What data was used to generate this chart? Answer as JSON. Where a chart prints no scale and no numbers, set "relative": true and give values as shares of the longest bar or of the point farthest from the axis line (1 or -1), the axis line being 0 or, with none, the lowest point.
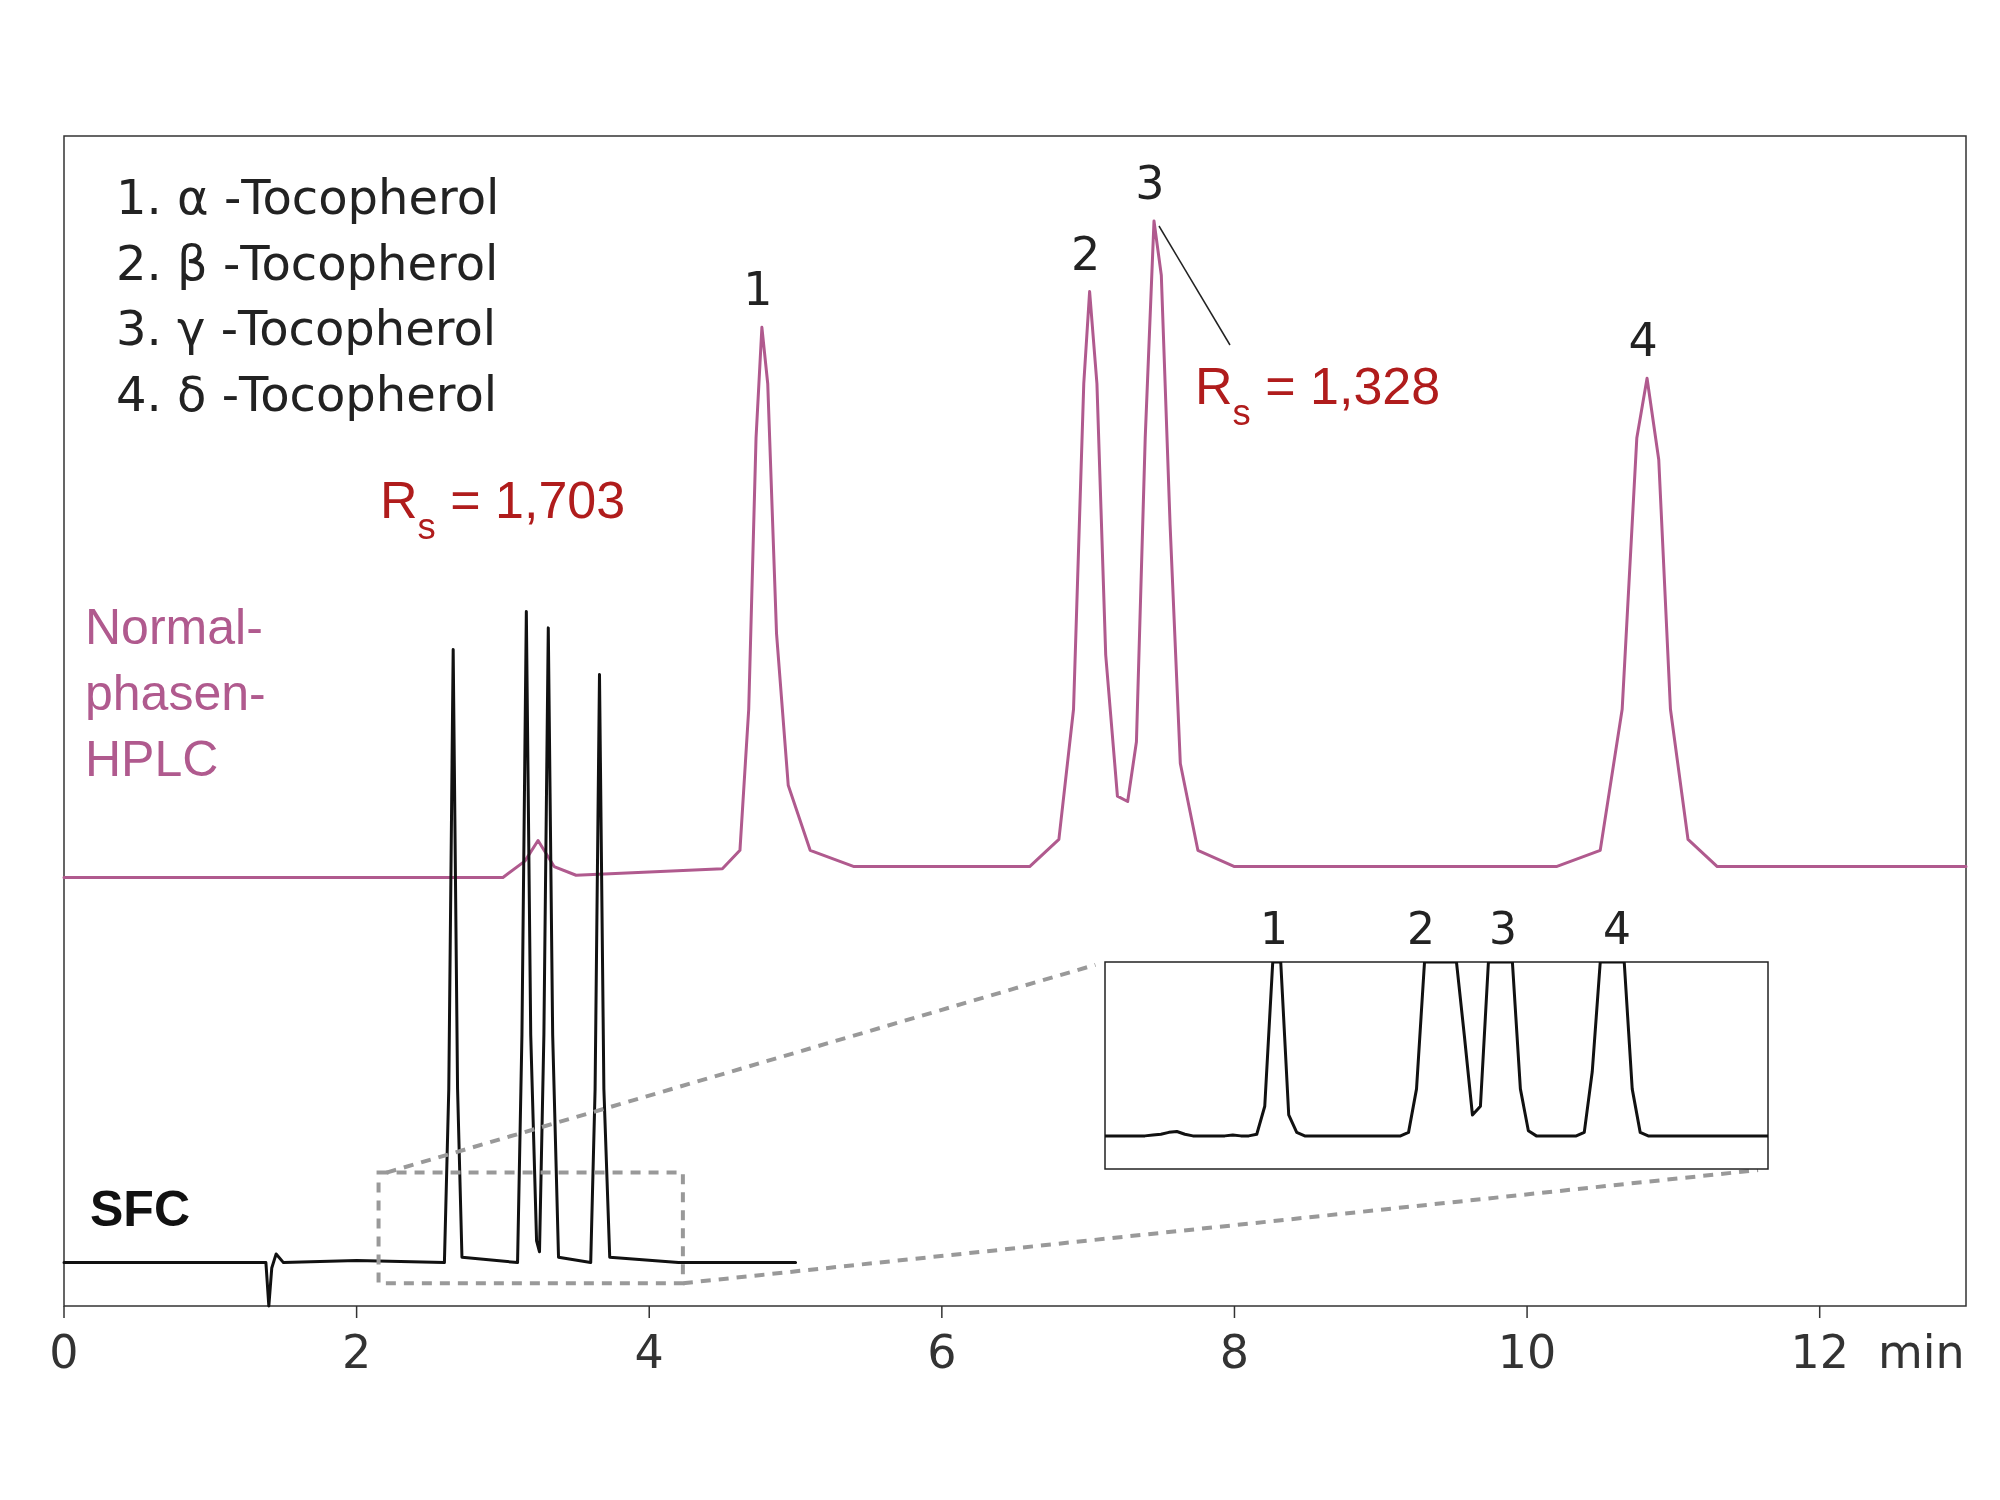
{
  "chart_data": [
    {
      "type": "line",
      "relative": true,
      "xlabel": "min",
      "xlim": [
        0,
        13
      ],
      "xticks": [
        0,
        2,
        4,
        6,
        8,
        10,
        12
      ],
      "marker": "none",
      "line_style": "solid",
      "series": [
        {
          "name": "Normal-phasen-HPLC",
          "color": "#b05a8e",
          "x": [
            0,
            2.5,
            3.0,
            3.15,
            3.24,
            3.35,
            3.5,
            4.0,
            4.5,
            4.62,
            4.68,
            4.73,
            4.77,
            4.81,
            4.87,
            4.95,
            5.1,
            5.4,
            6.0,
            6.6,
            6.8,
            6.9,
            6.97,
            7.01,
            7.06,
            7.12,
            7.2,
            7.27,
            7.33,
            7.39,
            7.45,
            7.5,
            7.56,
            7.63,
            7.75,
            8.0,
            10.2,
            10.5,
            10.65,
            10.75,
            10.82,
            10.9,
            10.98,
            11.1,
            11.3,
            13
          ],
          "values": [
            0.395,
            0.395,
            0.395,
            0.41,
            0.429,
            0.405,
            0.397,
            0.4,
            0.403,
            0.42,
            0.55,
            0.8,
            0.902,
            0.85,
            0.62,
            0.48,
            0.42,
            0.405,
            0.405,
            0.405,
            0.43,
            0.55,
            0.85,
            0.935,
            0.85,
            0.6,
            0.47,
            0.465,
            0.52,
            0.8,
            1.0,
            0.95,
            0.72,
            0.5,
            0.42,
            0.405,
            0.405,
            0.42,
            0.55,
            0.8,
            0.855,
            0.78,
            0.55,
            0.43,
            0.405,
            0.405
          ]
        },
        {
          "name": "SFC",
          "color": "#111111",
          "x": [
            0,
            1.3,
            1.38,
            1.4,
            1.42,
            1.45,
            1.5,
            2.0,
            2.6,
            2.63,
            2.66,
            2.69,
            2.72,
            3.1,
            3.13,
            3.16,
            3.19,
            3.23,
            3.25,
            3.28,
            3.31,
            3.34,
            3.38,
            3.6,
            3.63,
            3.66,
            3.69,
            3.73,
            4.2,
            5.0
          ],
          "values": [
            0.04,
            0.04,
            0.04,
            0.0,
            0.035,
            0.048,
            0.04,
            0.042,
            0.04,
            0.2,
            0.605,
            0.2,
            0.045,
            0.04,
            0.25,
            0.64,
            0.25,
            0.06,
            0.05,
            0.25,
            0.625,
            0.25,
            0.045,
            0.04,
            0.2,
            0.582,
            0.2,
            0.045,
            0.04,
            0.04
          ]
        }
      ],
      "annotations": [
        "1. α -Tocopherol",
        "2. β -Tocopherol",
        "3. γ -Tocopherol",
        "4. δ -Tocopherol",
        "R$_{s}$ = 1,703",
        {
          "text": "1",
          "x": 4.77,
          "y": 0.902
        },
        {
          "text": "2",
          "x": 7.01,
          "y": 0.935
        },
        {
          "text": "3",
          "x": 7.45,
          "y": 1.0
        },
        {
          "text": "4",
          "x": 10.82,
          "y": 0.855
        },
        {
          "text": "R$_{s}$ = 1,328",
          "x": 7.45,
          "y": 1.0
        }
      ]
    },
    {
      "type": "line",
      "relative": true,
      "marker": "none",
      "line_style": "solid",
      "categories": [
        null,
        null,
        null,
        null,
        null,
        null,
        null,
        null,
        null,
        null,
        null,
        null,
        null,
        null,
        null,
        null,
        null,
        null,
        null,
        null,
        null,
        null,
        null,
        null,
        null,
        null,
        null,
        null,
        null,
        null,
        null,
        null,
        null,
        null,
        null,
        null,
        null,
        null,
        null,
        null,
        null,
        null,
        null,
        null,
        null,
        null,
        null,
        null,
        null,
        null,
        null,
        null,
        null,
        null,
        null,
        null,
        null,
        null,
        null,
        null,
        null,
        null,
        null,
        null,
        null,
        null,
        null,
        null,
        null,
        null,
        null,
        null,
        null,
        null,
        null,
        null,
        null,
        null,
        null,
        null,
        null,
        null,
        null,
        null
      ],
      "series": [
        {
          "color": "#111111",
          "values": [
            0.16,
            0.16,
            0.16,
            0.16,
            0.16,
            0.16,
            0.164,
            0.168,
            0.177,
            0.181,
            0.168,
            0.16,
            0.16,
            0.16,
            0.16,
            0.16,
            0.164,
            0.16,
            0.16,
            0.168,
            0.303,
            1,
            1,
            0.261,
            0.177,
            0.16,
            0.16,
            0.16,
            0.16,
            0.16,
            0.16,
            0.16,
            0.16,
            0.16,
            0.16,
            0.16,
            0.16,
            0.16,
            0.177,
            0.387,
            1,
            1,
            1,
            1,
            1,
            0.639,
            0.261,
            0.303,
            1,
            1,
            1,
            1,
            0.387,
            0.185,
            0.16,
            0.16,
            0.16,
            0.16,
            0.16,
            0.16,
            0.177,
            0.471,
            1,
            1,
            1,
            1,
            0.387,
            0.177,
            0.16,
            0.16,
            0.16,
            0.16,
            0.16,
            0.16,
            0.16,
            0.16,
            0.16,
            0.16,
            0.16,
            0.16,
            0.16,
            0.16,
            0.16,
            0.16
          ]
        }
      ],
      "annotations": [
        "1",
        "2",
        "3",
        "4"
      ]
    }
  ]
}
